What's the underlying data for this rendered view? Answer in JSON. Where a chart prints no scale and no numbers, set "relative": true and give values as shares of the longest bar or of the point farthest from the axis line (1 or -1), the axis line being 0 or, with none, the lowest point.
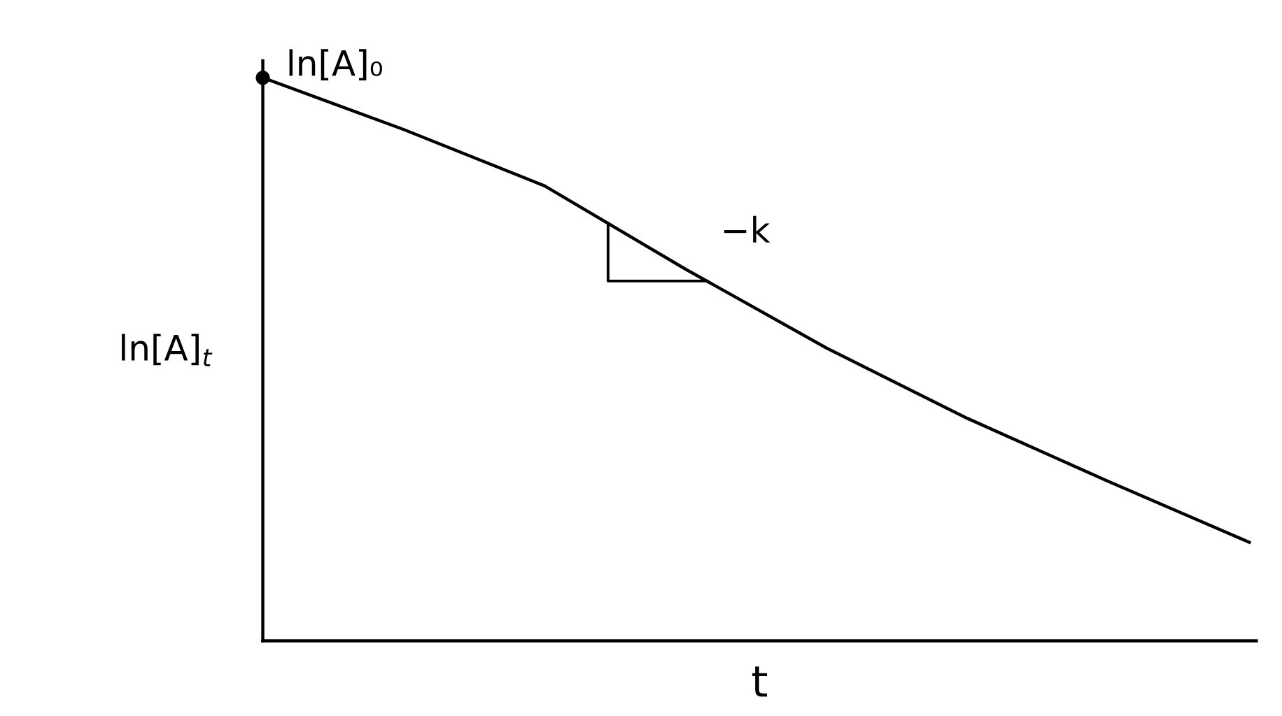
{
  "chart_data": {
    "type": "line",
    "relative": true,
    "xlabel": "t",
    "ylabel": "ln[A]$_{t}$",
    "categories": [
      null,
      null,
      null,
      null,
      null,
      null,
      null,
      null
    ],
    "series": [
      {
        "color": "#000000",
        "values": [
          1,
          0.908,
          0.808,
          0.66,
          0.52,
          0.395,
          0.283,
          0.175
        ]
      }
    ],
    "annotations": [
      "ln[A]₀",
      "−k"
    ],
    "grid": false,
    "legend": false,
    "tick_labels": false,
    "marker": "none",
    "line_style": "solid"
  }
}
